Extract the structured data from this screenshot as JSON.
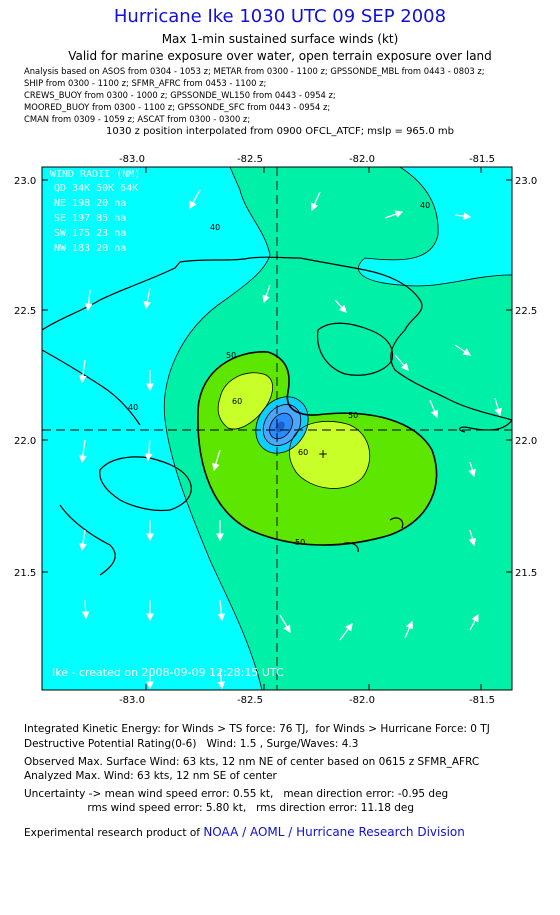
{
  "header": {
    "title": "Hurricane Ike 1030 UTC 09 SEP 2008",
    "subtitle": "Max 1-min sustained surface winds (kt)",
    "valid_line": "Valid for marine exposure over water, open terrain exposure over land",
    "analysis_lines": [
      "Analysis based on  ASOS from 0304 - 1053 z;  METAR from 0300 - 1100 z;  GPSSONDE_MBL from 0443 - 0803 z;",
      "SHIP from 0300 - 1100 z;  SFMR_AFRC from 0453 - 1100 z;",
      "CREWS_BUOY from 0300 - 1000 z;  GPSSONDE_WL150 from 0443 - 0954 z;",
      "MOORED_BUOY from 0300 - 1100 z;  GPSSONDE_SFC from 0443 - 0954 z;",
      "CMAN from 0309 - 1059 z;  ASCAT from 0300 - 0300 z;"
    ],
    "interp_line": "1030 z position interpolated from 0900 OFCL_ATCF; mslp = 965.0 mb"
  },
  "map": {
    "x_ticks": [
      "-83.0",
      "-82.5",
      "-82.0",
      "-81.5"
    ],
    "y_ticks": [
      "23.0",
      "22.5",
      "22.0",
      "21.5"
    ],
    "contour_labels": [
      "40",
      "40",
      "40",
      "50",
      "50",
      "50",
      "60",
      "60"
    ],
    "wind_radii": {
      "header": "WIND RADII (NM)",
      "columns": "QD  34K  50K  64K",
      "rows": [
        "NE  198   20   na",
        "SE  197   85   na",
        "SW  175   23   na",
        "NW  183   20   na"
      ]
    },
    "created": "Ike - created on 2008-09-09 12:28:15 UTC",
    "colors": {
      "below_40": "#00ffff",
      "40_50": "#00f0a8",
      "50_60": "#5ce600",
      "60_64": "#c8ff28",
      "eye": "#2a8cff",
      "water_contour": "#000000"
    }
  },
  "footer": {
    "ike": "Integrated Kinetic Energy: for Winds > TS force: 76 TJ,  for Winds > Hurricane Force: 0 TJ",
    "dpr": "Destructive Potential Rating(0-6)   Wind: 1.5 , Surge/Waves: 4.3",
    "observed": "Observed Max. Surface Wind: 63 kts, 12 nm NE of center based on 0615 z SFMR_AFRC",
    "analyzed": "Analyzed Max. Wind: 63 kts, 12 nm SE of center",
    "uncert1": "Uncertainty -> mean wind speed error: 0.55 kt,   mean direction error: -0.95 deg",
    "uncert2": "                   rms wind speed error: 5.80 kt,   rms direction error: 11.18 deg",
    "credit_prefix": "Experimental research product of ",
    "credit_link": "NOAA / AOML / Hurricane Research Division"
  }
}
